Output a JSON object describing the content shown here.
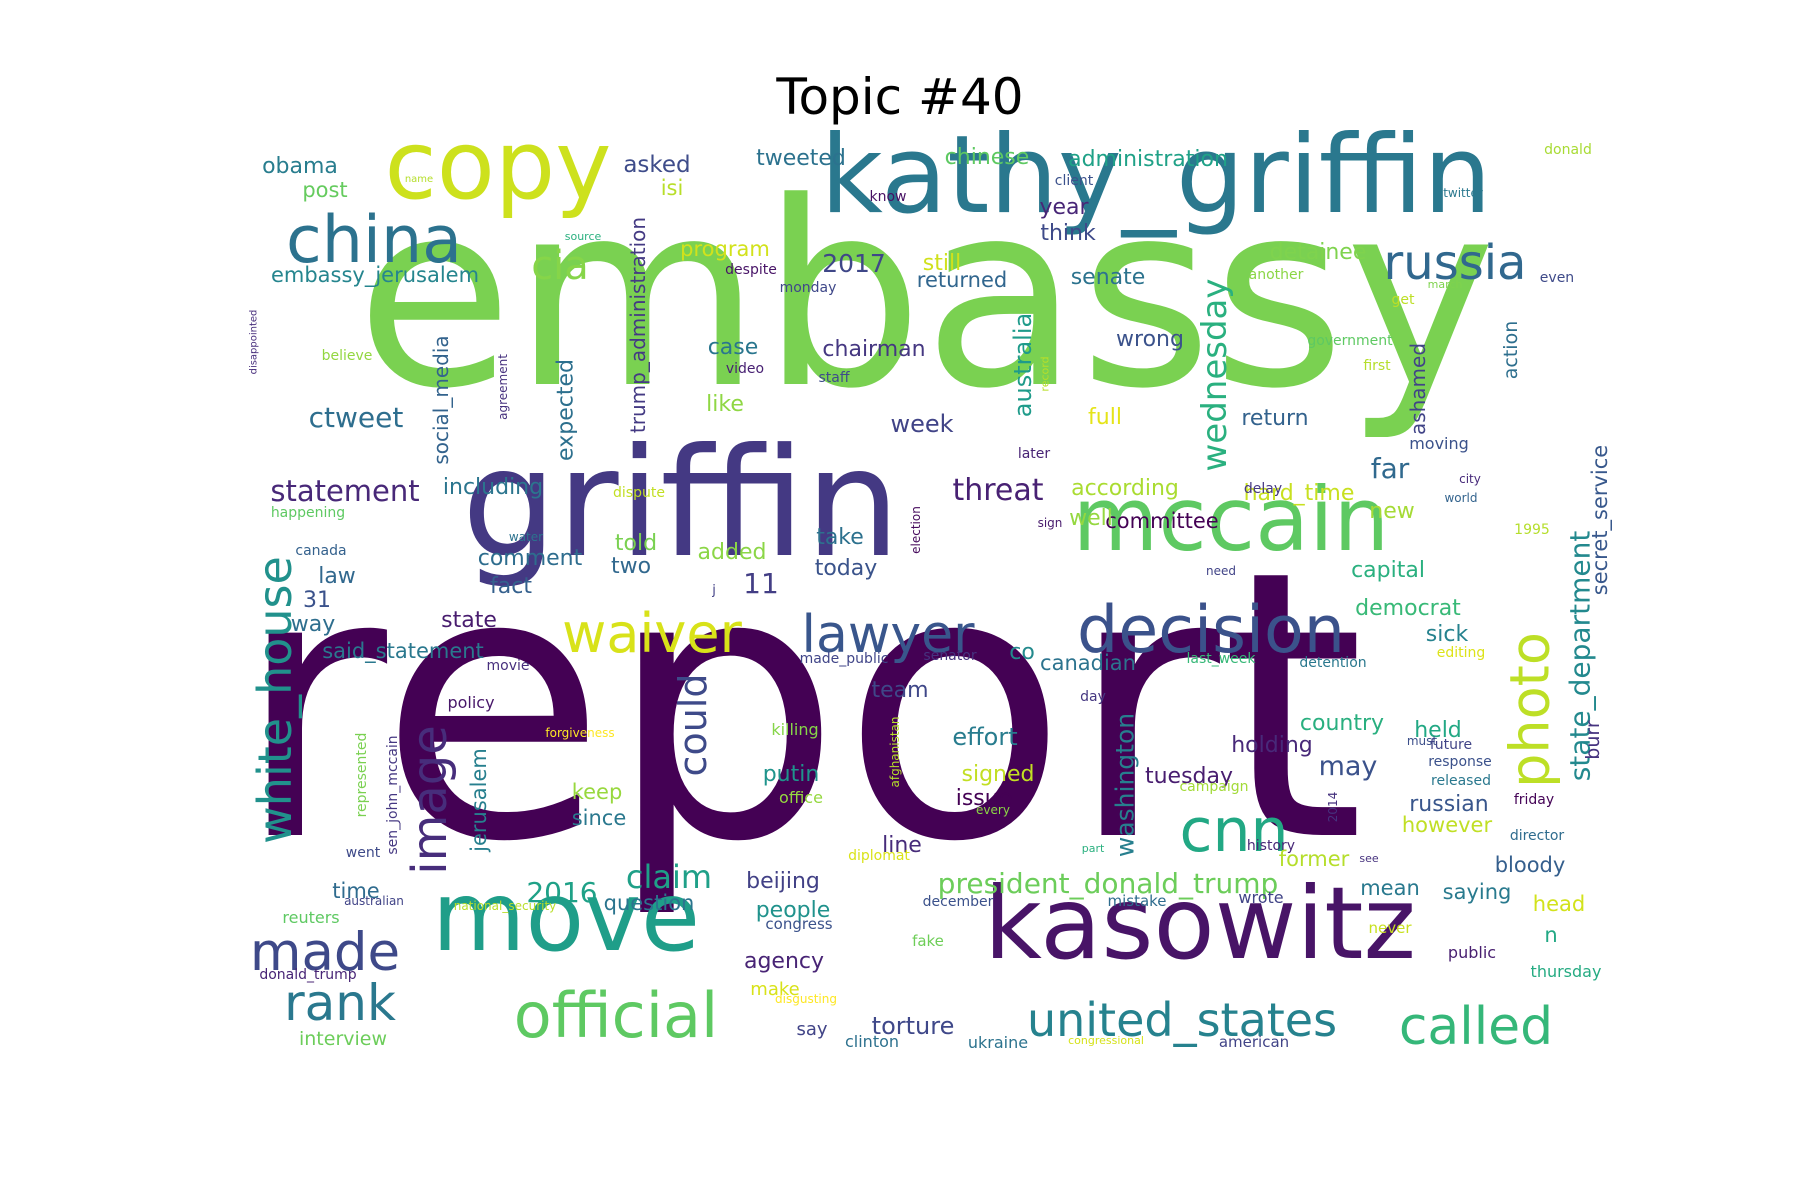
{
  "chart_data": {
    "type": "wordcloud",
    "title": "Topic #40",
    "words": [
      {
        "text": "report",
        "color": "#440154"
      },
      {
        "text": "embassy",
        "color": "#7ad151"
      },
      {
        "text": "kathy_griffin",
        "color": "#2a788e"
      },
      {
        "text": "griffin",
        "color": "#443983"
      },
      {
        "text": "kasowitz",
        "color": "#481467"
      },
      {
        "text": "move",
        "color": "#1f9e89"
      },
      {
        "text": "copy",
        "color": "#cde11d"
      },
      {
        "text": "mccain",
        "color": "#5ec962"
      },
      {
        "text": "decision",
        "color": "#3b528b"
      },
      {
        "text": "china",
        "color": "#2c728e"
      },
      {
        "text": "official",
        "color": "#5ec962"
      },
      {
        "text": "cnn",
        "color": "#22a884"
      },
      {
        "text": "waiver",
        "color": "#d8e219"
      },
      {
        "text": "lawyer",
        "color": "#39568c"
      },
      {
        "text": "called",
        "color": "#35b779"
      },
      {
        "text": "united_states",
        "color": "#26828e"
      },
      {
        "text": "photo",
        "color": "#bddf26"
      },
      {
        "text": "made",
        "color": "#3e4989"
      },
      {
        "text": "rank",
        "color": "#2a788e"
      },
      {
        "text": "image",
        "color": "#472d7b"
      },
      {
        "text": "white_house",
        "color": "#21918c"
      },
      {
        "text": "russia",
        "color": "#31688e"
      },
      {
        "text": "wednesday",
        "color": "#2ab07f"
      },
      {
        "text": "cia",
        "color": "#86d549"
      },
      {
        "text": "could",
        "color": "#3e4a89"
      },
      {
        "text": "state_department",
        "color": "#23898e"
      },
      {
        "text": "president_donald_trump",
        "color": "#6ccd5a"
      },
      {
        "text": "statement",
        "color": "#482878"
      },
      {
        "text": "claim",
        "color": "#1fa088"
      },
      {
        "text": "washington",
        "color": "#277f8e"
      },
      {
        "text": "australia",
        "color": "#1e9b8a"
      },
      {
        "text": "threat",
        "color": "#482173"
      },
      {
        "text": "ashamed",
        "color": "#414487"
      },
      {
        "text": "secret_service",
        "color": "#38588c"
      },
      {
        "text": "trump_administration",
        "color": "#443a83"
      },
      {
        "text": "social_media",
        "color": "#33638d"
      },
      {
        "text": "expected",
        "color": "#2d708e"
      },
      {
        "text": "jerusalem",
        "color": "#277f8e"
      },
      {
        "text": "embassy_jerusalem",
        "color": "#25858e"
      },
      {
        "text": "ctweet",
        "color": "#2e6e8e"
      },
      {
        "text": "2017",
        "color": "#3f4788"
      },
      {
        "text": "2016",
        "color": "#1fa187"
      },
      {
        "text": "11",
        "color": "#433e85"
      },
      {
        "text": "torture",
        "color": "#3f4889"
      },
      {
        "text": "may",
        "color": "#3b528b"
      },
      {
        "text": "far",
        "color": "#30698e"
      },
      {
        "text": "tweeted",
        "color": "#2c728e"
      },
      {
        "text": "asked",
        "color": "#3e4c8a"
      },
      {
        "text": "chinese",
        "color": "#5ec962"
      },
      {
        "text": "administration",
        "color": "#1fa187"
      },
      {
        "text": "year",
        "color": "#482677"
      },
      {
        "text": "think",
        "color": "#3e4a89"
      },
      {
        "text": "detainee",
        "color": "#7fd34e"
      },
      {
        "text": "senate",
        "color": "#2c738e"
      },
      {
        "text": "returned",
        "color": "#31668e"
      },
      {
        "text": "still",
        "color": "#d0e11c"
      },
      {
        "text": "program",
        "color": "#d2e21b"
      },
      {
        "text": "isi",
        "color": "#b8de29"
      },
      {
        "text": "obama",
        "color": "#287d8e"
      },
      {
        "text": "post",
        "color": "#65cb5e"
      },
      {
        "text": "chairman",
        "color": "#453781"
      },
      {
        "text": "case",
        "color": "#2a768e"
      },
      {
        "text": "like",
        "color": "#8fd744"
      },
      {
        "text": "wrong",
        "color": "#3b528b"
      },
      {
        "text": "full",
        "color": "#e5e419"
      },
      {
        "text": "return",
        "color": "#33628d"
      },
      {
        "text": "week",
        "color": "#414487"
      },
      {
        "text": "including",
        "color": "#2b758e"
      },
      {
        "text": "according",
        "color": "#aadc32"
      },
      {
        "text": "hard_time",
        "color": "#c8e020"
      },
      {
        "text": "committee",
        "color": "#440154"
      },
      {
        "text": "well",
        "color": "#95d840"
      },
      {
        "text": "new",
        "color": "#a5db36"
      },
      {
        "text": "told",
        "color": "#7ad151"
      },
      {
        "text": "added",
        "color": "#8bd646"
      },
      {
        "text": "take",
        "color": "#2d718e"
      },
      {
        "text": "today",
        "color": "#3a538b"
      },
      {
        "text": "comment",
        "color": "#2e6d8e"
      },
      {
        "text": "fact",
        "color": "#34608d"
      },
      {
        "text": "two",
        "color": "#31688e"
      },
      {
        "text": "capital",
        "color": "#2ab07f"
      },
      {
        "text": "democrat",
        "color": "#38b977"
      },
      {
        "text": "sick",
        "color": "#26828e"
      },
      {
        "text": "law",
        "color": "#31688e"
      },
      {
        "text": "31",
        "color": "#3b528b"
      },
      {
        "text": "way",
        "color": "#2e6e8e"
      },
      {
        "text": "state",
        "color": "#481c6e"
      },
      {
        "text": "said_statement",
        "color": "#2a788e"
      },
      {
        "text": "canadian",
        "color": "#2c738e"
      },
      {
        "text": "co",
        "color": "#238a8d"
      },
      {
        "text": "team",
        "color": "#3f4788"
      },
      {
        "text": "effort",
        "color": "#287c8e"
      },
      {
        "text": "holding",
        "color": "#482979"
      },
      {
        "text": "country",
        "color": "#29af7f"
      },
      {
        "text": "held",
        "color": "#22a884"
      },
      {
        "text": "burr",
        "color": "#46337f"
      },
      {
        "text": "signed",
        "color": "#c2df23"
      },
      {
        "text": "issue",
        "color": "#440154"
      },
      {
        "text": "putin",
        "color": "#1f948c"
      },
      {
        "text": "keep",
        "color": "#98d83e"
      },
      {
        "text": "since",
        "color": "#2a788e"
      },
      {
        "text": "tuesday",
        "color": "#481d6f"
      },
      {
        "text": "russian",
        "color": "#39568c"
      },
      {
        "text": "however",
        "color": "#c0df25"
      },
      {
        "text": "line",
        "color": "#472c7a"
      },
      {
        "text": "beijing",
        "color": "#424186"
      },
      {
        "text": "people",
        "color": "#20928c"
      },
      {
        "text": "agency",
        "color": "#482475"
      },
      {
        "text": "question",
        "color": "#2b748e"
      },
      {
        "text": "time",
        "color": "#2f6b8e"
      },
      {
        "text": "former",
        "color": "#b5de2b"
      },
      {
        "text": "mean",
        "color": "#29798e"
      },
      {
        "text": "saying",
        "color": "#297a8e"
      },
      {
        "text": "bloody",
        "color": "#355f8d"
      },
      {
        "text": "head",
        "color": "#d2e21b"
      },
      {
        "text": "n",
        "color": "#22a884"
      },
      {
        "text": "make",
        "color": "#d8e219"
      },
      {
        "text": "say",
        "color": "#414487"
      },
      {
        "text": "interview",
        "color": "#6ccd5a"
      },
      {
        "text": "thursday",
        "color": "#25ab82"
      },
      {
        "text": "public",
        "color": "#481f70"
      },
      {
        "text": "happening",
        "color": "#5ec962"
      },
      {
        "text": "believe",
        "color": "#93d741"
      },
      {
        "text": "monday",
        "color": "#3f4889"
      },
      {
        "text": "despite",
        "color": "#481467"
      },
      {
        "text": "know",
        "color": "#471063"
      },
      {
        "text": "client",
        "color": "#3b518b"
      },
      {
        "text": "staff",
        "color": "#3e4c8a"
      },
      {
        "text": "video",
        "color": "#482173"
      },
      {
        "text": "later",
        "color": "#482475"
      },
      {
        "text": "another",
        "color": "#8bd646"
      },
      {
        "text": "government",
        "color": "#5ec962"
      },
      {
        "text": "first",
        "color": "#b5de2b"
      },
      {
        "text": "get",
        "color": "#bddf26"
      },
      {
        "text": "action",
        "color": "#2e6f8e"
      },
      {
        "text": "moving",
        "color": "#3b528b"
      },
      {
        "text": "delay",
        "color": "#453882"
      },
      {
        "text": "city",
        "color": "#472a7a"
      },
      {
        "text": "world",
        "color": "#33638d"
      },
      {
        "text": "dispute",
        "color": "#c2df23"
      },
      {
        "text": "sign",
        "color": "#481b6d"
      },
      {
        "text": "need",
        "color": "#414487"
      },
      {
        "text": "election",
        "color": "#460a5d"
      },
      {
        "text": "water",
        "color": "#2c728e"
      },
      {
        "text": "canada",
        "color": "#34618d"
      },
      {
        "text": "j",
        "color": "#424086"
      },
      {
        "text": "made_public",
        "color": "#404588"
      },
      {
        "text": "senator",
        "color": "#46327e"
      },
      {
        "text": "movie",
        "color": "#472f7d"
      },
      {
        "text": "last_week",
        "color": "#37b878"
      },
      {
        "text": "detention",
        "color": "#2a788e"
      },
      {
        "text": "editing",
        "color": "#dde318"
      },
      {
        "text": "policy",
        "color": "#481769"
      },
      {
        "text": "day",
        "color": "#453781"
      },
      {
        "text": "forgiveness",
        "color": "#fde725"
      },
      {
        "text": "killing",
        "color": "#86d549"
      },
      {
        "text": "must",
        "color": "#3c4f8a"
      },
      {
        "text": "future",
        "color": "#414487"
      },
      {
        "text": "response",
        "color": "#3b518b"
      },
      {
        "text": "released",
        "color": "#2a788e"
      },
      {
        "text": "friday",
        "color": "#450457"
      },
      {
        "text": "campaign",
        "color": "#a2da37"
      },
      {
        "text": "2014",
        "color": "#46327e"
      },
      {
        "text": "office",
        "color": "#95d840"
      },
      {
        "text": "every",
        "color": "#8bd646"
      },
      {
        "text": "represented",
        "color": "#7ad151"
      },
      {
        "text": "sen_john_mccain",
        "color": "#453882"
      },
      {
        "text": "went",
        "color": "#3e4a89"
      },
      {
        "text": "afghanistan",
        "color": "#b5de2b"
      },
      {
        "text": "part",
        "color": "#2ab07f"
      },
      {
        "text": "history",
        "color": "#482878"
      },
      {
        "text": "director",
        "color": "#2f6c8e"
      },
      {
        "text": "diplomat",
        "color": "#dae319"
      },
      {
        "text": "see",
        "color": "#46327e"
      },
      {
        "text": "australian",
        "color": "#414487"
      },
      {
        "text": "national_security",
        "color": "#b8de29"
      },
      {
        "text": "december",
        "color": "#3b518b"
      },
      {
        "text": "mistake",
        "color": "#2f6c8e"
      },
      {
        "text": "wrote",
        "color": "#414487"
      },
      {
        "text": "reuters",
        "color": "#5ec962"
      },
      {
        "text": "congress",
        "color": "#3b528b"
      },
      {
        "text": "never",
        "color": "#c8e020"
      },
      {
        "text": "fake",
        "color": "#6ece58"
      },
      {
        "text": "donald_trump",
        "color": "#482576"
      },
      {
        "text": "disgusting",
        "color": "#fde725"
      },
      {
        "text": "clinton",
        "color": "#2d718e"
      },
      {
        "text": "ukraine",
        "color": "#2c738e"
      },
      {
        "text": "congressional",
        "color": "#d5e21a"
      },
      {
        "text": "american",
        "color": "#414487"
      },
      {
        "text": "donald",
        "color": "#a8db34"
      },
      {
        "text": "twitter",
        "color": "#2a788e"
      },
      {
        "text": "name",
        "color": "#b5de2b"
      },
      {
        "text": "source",
        "color": "#2ab07f"
      },
      {
        "text": "disappointed",
        "color": "#472e7c"
      },
      {
        "text": "agreement",
        "color": "#46307e"
      },
      {
        "text": "record",
        "color": "#b8de29"
      },
      {
        "text": "march",
        "color": "#7fd34e"
      },
      {
        "text": "even",
        "color": "#3e4a89"
      },
      {
        "text": "1995",
        "color": "#b5de2b"
      }
    ]
  }
}
